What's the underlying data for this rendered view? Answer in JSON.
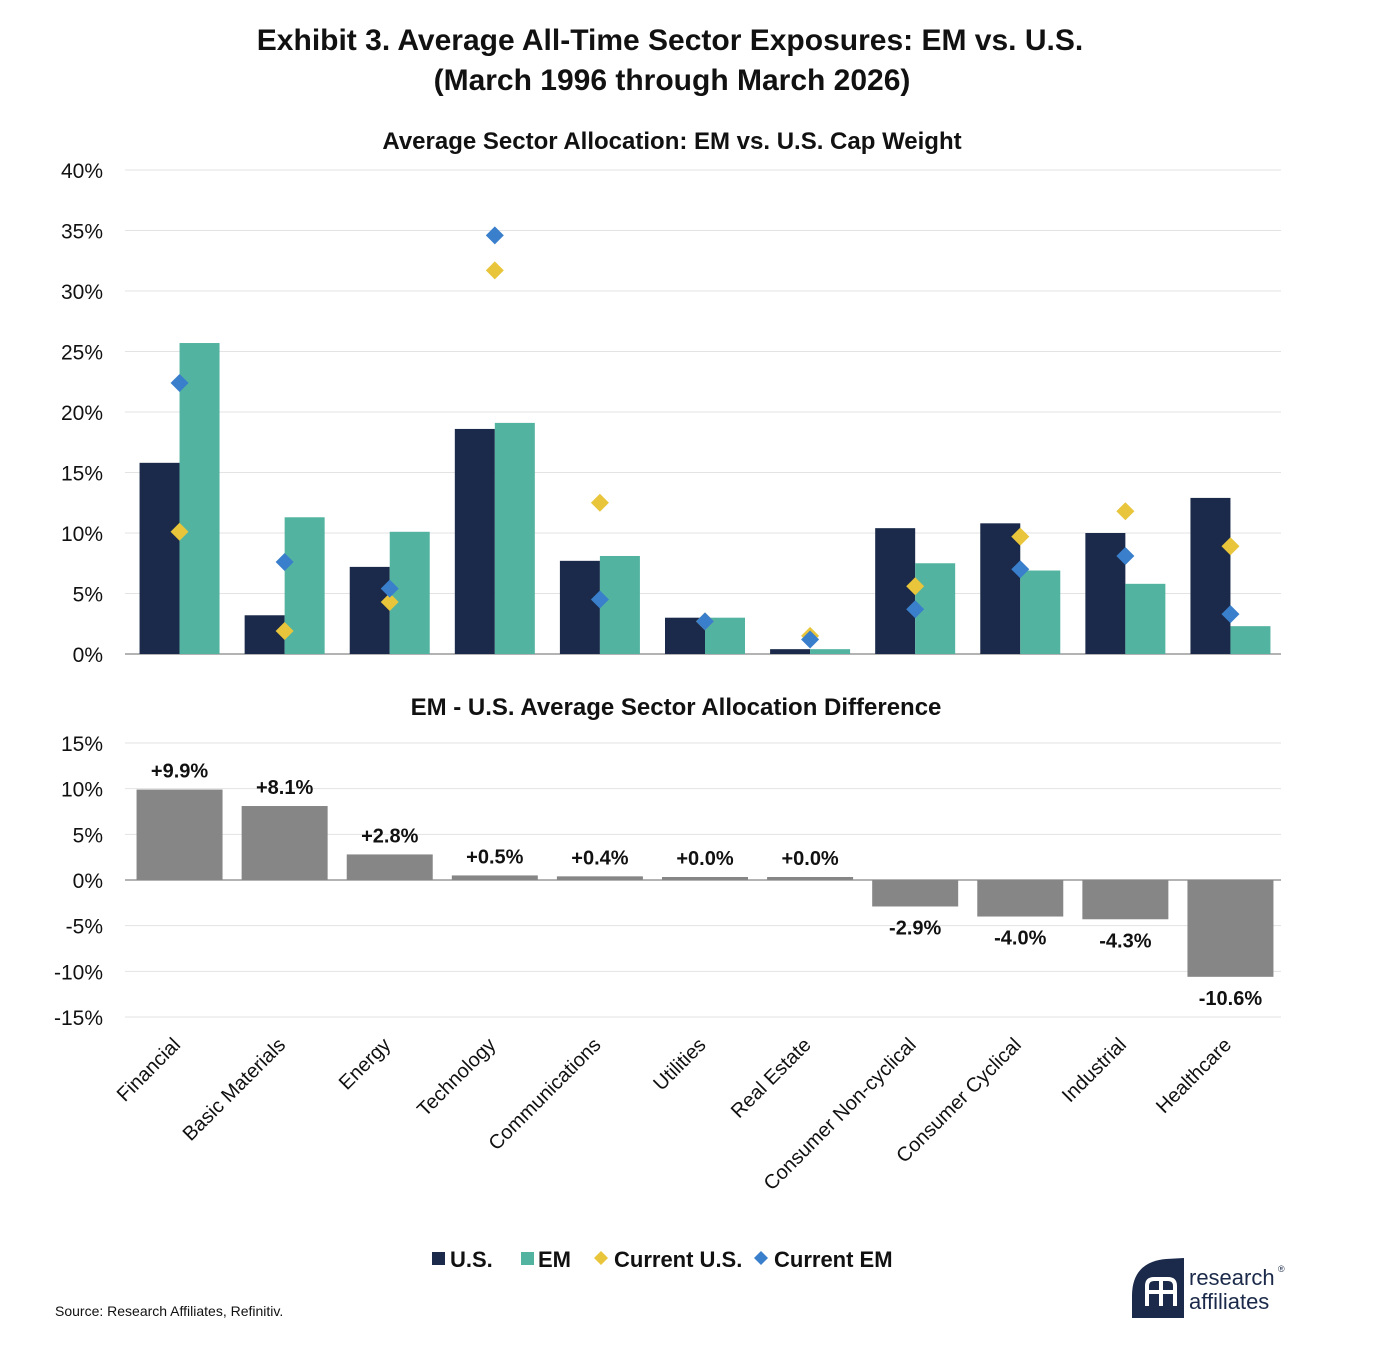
{
  "header": {
    "title_line1": "Exhibit 3. Average All-Time Sector Exposures: EM vs. U.S.",
    "title_line2": "(March 1996 through March 2026)"
  },
  "colors": {
    "us": "#1b2a4a",
    "em": "#52b3a0",
    "current_us": "#e8c53a",
    "current_em": "#3a7fcc",
    "difference": "#868686",
    "grid": "#e3e3e3",
    "axis": "#9a9a9a",
    "logo": "#1b2a4a"
  },
  "chart_data": [
    {
      "type": "bar",
      "title": "Average Sector Allocation: EM vs. U.S. Cap Weight",
      "categories": [
        "Financial",
        "Basic Materials",
        "Energy",
        "Technology",
        "Communications",
        "Utilities",
        "Real Estate",
        "Consumer Non-cyclical",
        "Consumer Cyclical",
        "Industrial",
        "Healthcare"
      ],
      "series": [
        {
          "name": "U.S.",
          "kind": "bar",
          "values": [
            15.8,
            3.2,
            7.2,
            18.6,
            7.7,
            3.0,
            0.4,
            10.4,
            10.8,
            10.0,
            12.9
          ]
        },
        {
          "name": "EM",
          "kind": "bar",
          "values": [
            25.7,
            11.3,
            10.1,
            19.1,
            8.1,
            3.0,
            0.4,
            7.5,
            6.9,
            5.8,
            2.3
          ]
        },
        {
          "name": "Current U.S.",
          "kind": "marker",
          "values": [
            10.1,
            1.9,
            4.3,
            31.7,
            12.5,
            2.7,
            1.5,
            5.6,
            9.7,
            11.8,
            8.9
          ]
        },
        {
          "name": "Current EM",
          "kind": "marker",
          "values": [
            22.4,
            7.6,
            5.4,
            34.6,
            4.5,
            2.7,
            1.2,
            3.7,
            7.0,
            8.1,
            3.3
          ]
        }
      ],
      "ylim": [
        0,
        40
      ],
      "yticks": [
        0,
        5,
        10,
        15,
        20,
        25,
        30,
        35,
        40
      ],
      "ytick_labels": [
        "0%",
        "5%",
        "10%",
        "15%",
        "20%",
        "25%",
        "30%",
        "35%",
        "40%"
      ],
      "grid": true
    },
    {
      "type": "bar",
      "title": "EM - U.S. Average Sector Allocation Difference",
      "categories": [
        "Financial",
        "Basic Materials",
        "Energy",
        "Technology",
        "Communications",
        "Utilities",
        "Real Estate",
        "Consumer Non-cyclical",
        "Consumer Cyclical",
        "Industrial",
        "Healthcare"
      ],
      "values": [
        9.9,
        8.1,
        2.8,
        0.5,
        0.4,
        0.0,
        0.0,
        -2.9,
        -4.0,
        -4.3,
        -10.6
      ],
      "value_labels": [
        "+9.9%",
        "+8.1%",
        "+2.8%",
        "+0.5%",
        "+0.4%",
        "+0.0%",
        "+0.0%",
        "-2.9%",
        "-4.0%",
        "-4.3%",
        "-10.6%"
      ],
      "ylim": [
        -15,
        15
      ],
      "yticks": [
        15,
        10,
        5,
        0,
        -5,
        -10,
        -15
      ],
      "ytick_labels": [
        "15%",
        "10%",
        "5%",
        "0%",
        "-5%",
        "-10%",
        "-15%"
      ],
      "grid": true
    }
  ],
  "legend": {
    "placement": "bottom-center",
    "items": [
      {
        "label": "U.S.",
        "marker": "square",
        "color": "#1b2a4a"
      },
      {
        "label": "EM",
        "marker": "square",
        "color": "#52b3a0"
      },
      {
        "label": "Current U.S.",
        "marker": "diamond",
        "color": "#e8c53a"
      },
      {
        "label": "Current EM",
        "marker": "diamond",
        "color": "#3a7fcc"
      }
    ]
  },
  "footer": {
    "source": "Source: Research Affiliates, Refinitiv.",
    "logo_line1": "research",
    "logo_line2": "affiliates",
    "logo_mark": "®"
  }
}
